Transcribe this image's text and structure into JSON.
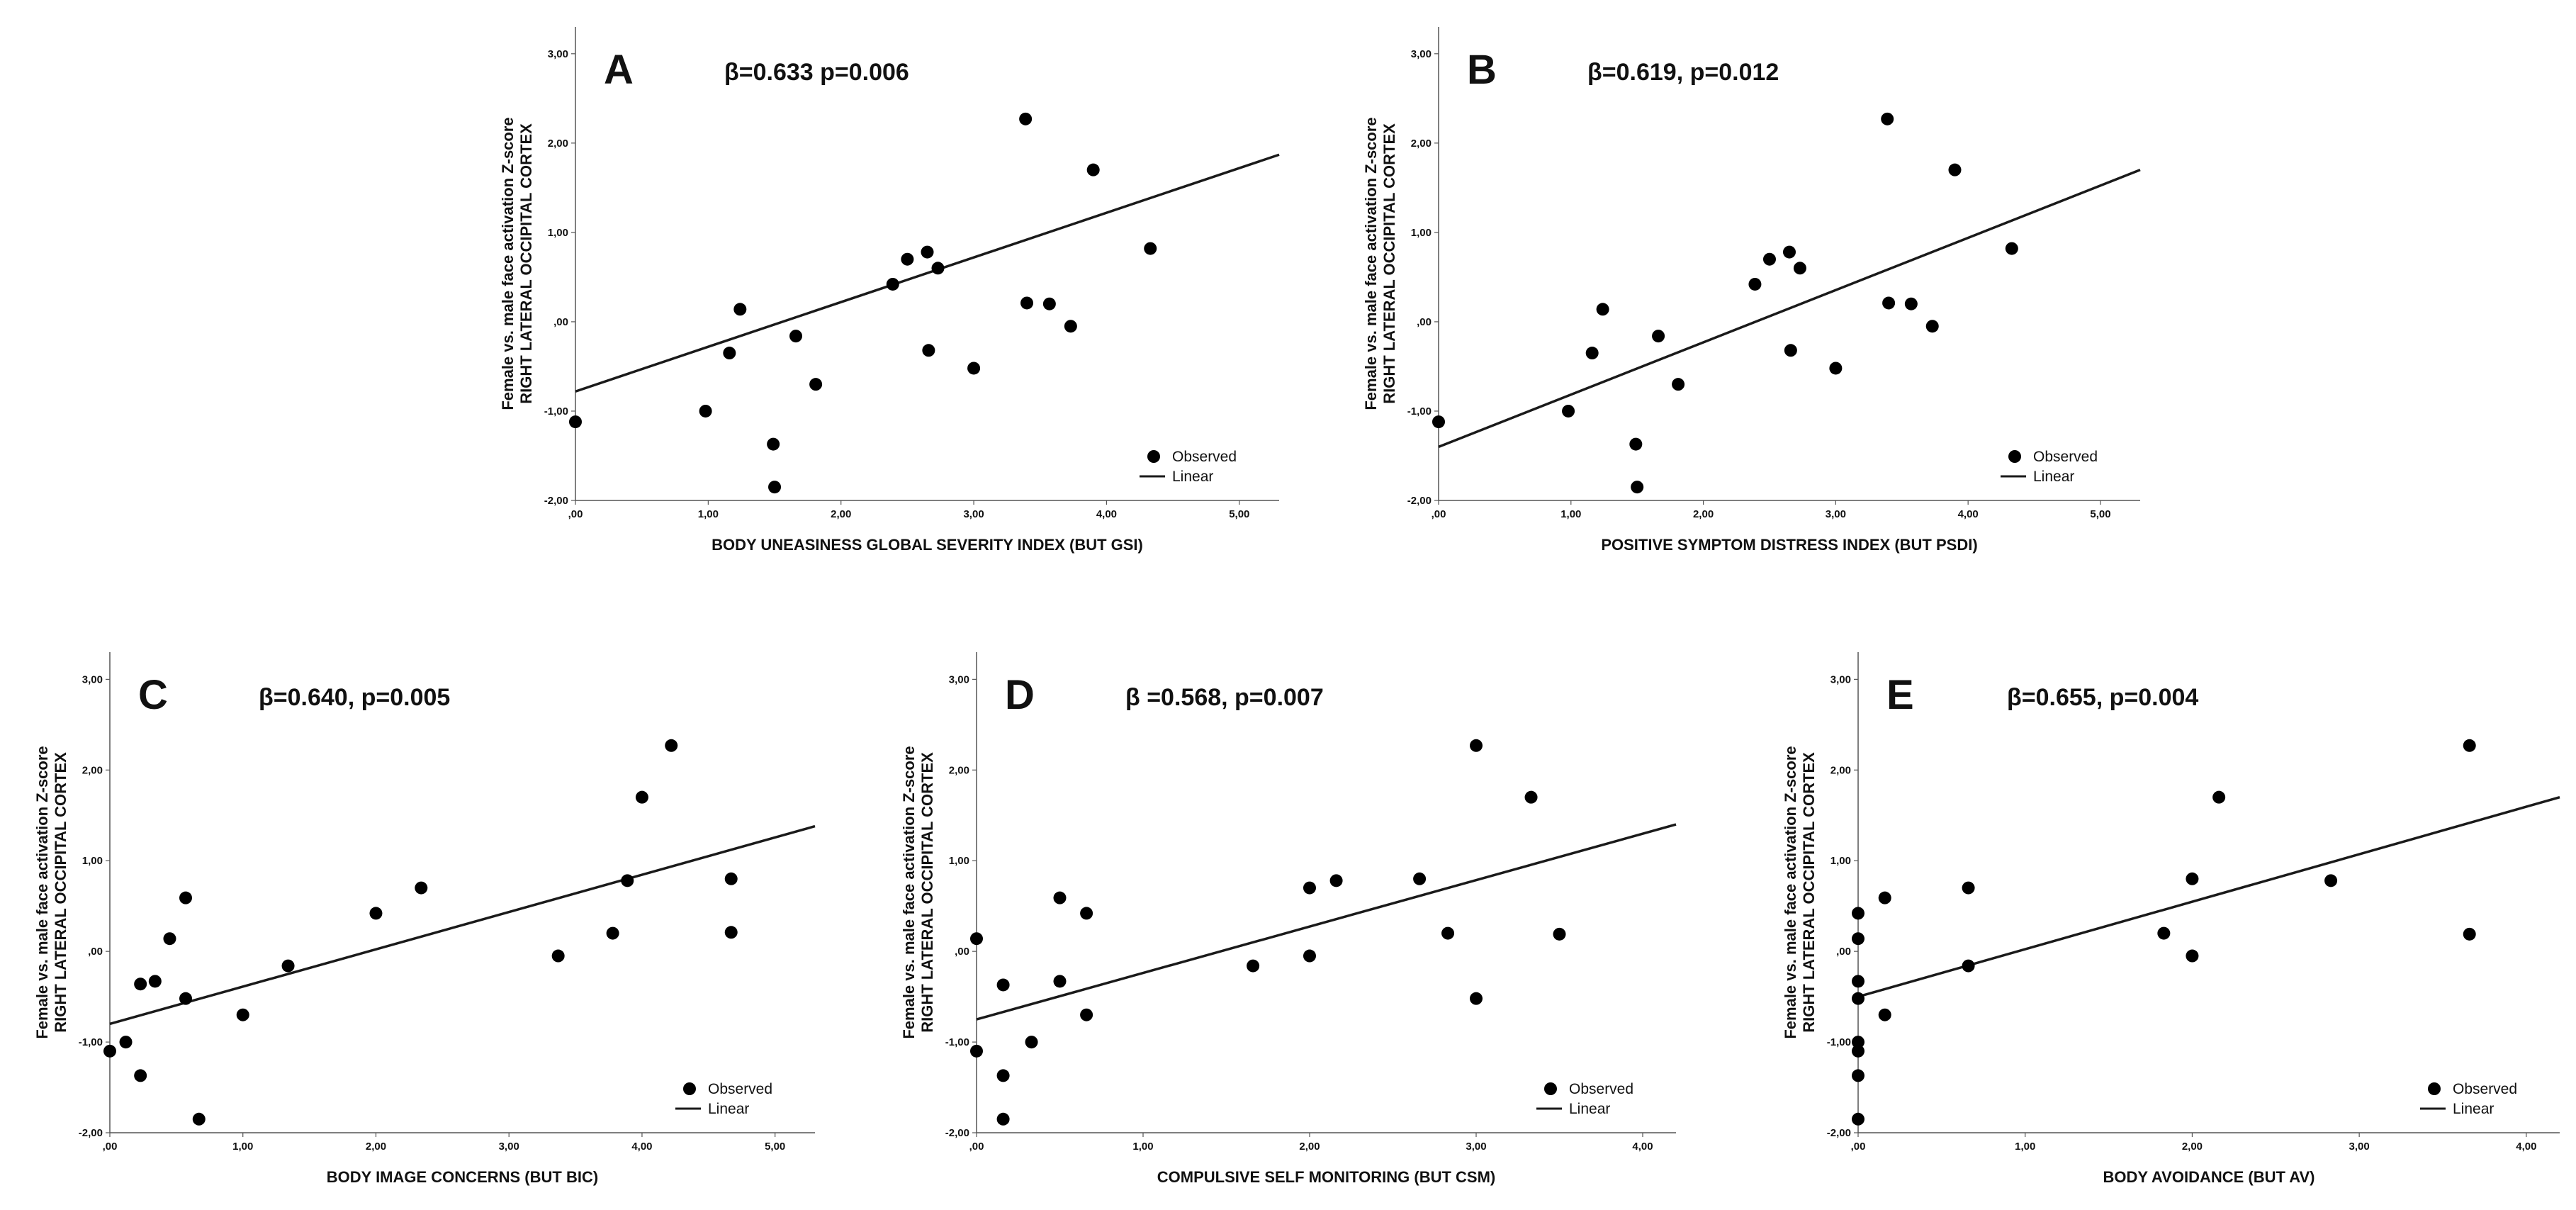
{
  "colors": {
    "points": "#000000",
    "line": "#1a1a1a",
    "axis": "#555555",
    "background": "#ffffff"
  },
  "legend": {
    "observed_label": "Observed",
    "linear_label": "Linear"
  },
  "chart_data": [
    {
      "type": "scatter",
      "panel": "A",
      "title": "β=0.633 p=0.006",
      "xlabel": "BODY UNEASINESS GLOBAL SEVERITY INDEX (BUT GSI)",
      "ylabel_line1": "Female vs. male face activation Z-score",
      "ylabel_line2": "RIGHT LATERAL OCCIPITAL CORTEX",
      "xlim": [
        0,
        5.3
      ],
      "ylim": [
        -2,
        3.3
      ],
      "xticks": [
        ",00",
        "1,00",
        "2,00",
        "3,00",
        "4,00",
        "5,00"
      ],
      "yticks": [
        "-2,00",
        "-1,00",
        ",00",
        "1,00",
        "2,00",
        "3,00"
      ],
      "grid": false,
      "legend_position": "bottom-right",
      "fit_line": {
        "x": [
          0,
          5.3
        ],
        "y": [
          -0.78,
          1.87
        ]
      },
      "points": [
        {
          "x": 0.0,
          "y": -1.12
        },
        {
          "x": 0.98,
          "y": -1.0
        },
        {
          "x": 1.16,
          "y": -0.35
        },
        {
          "x": 1.24,
          "y": 0.14
        },
        {
          "x": 1.49,
          "y": -1.37
        },
        {
          "x": 1.5,
          "y": -1.85
        },
        {
          "x": 1.66,
          "y": -0.16
        },
        {
          "x": 1.81,
          "y": -0.7
        },
        {
          "x": 2.39,
          "y": 0.42
        },
        {
          "x": 2.5,
          "y": 0.7
        },
        {
          "x": 2.65,
          "y": 0.78
        },
        {
          "x": 2.66,
          "y": -0.32
        },
        {
          "x": 2.73,
          "y": 0.6
        },
        {
          "x": 3.0,
          "y": -0.52
        },
        {
          "x": 3.39,
          "y": 2.27
        },
        {
          "x": 3.4,
          "y": 0.21
        },
        {
          "x": 3.57,
          "y": 0.2
        },
        {
          "x": 3.73,
          "y": -0.05
        },
        {
          "x": 3.9,
          "y": 1.7
        },
        {
          "x": 4.33,
          "y": 0.82
        }
      ]
    },
    {
      "type": "scatter",
      "panel": "B",
      "title": "β=0.619, p=0.012",
      "xlabel": "POSITIVE SYMPTOM DISTRESS INDEX (BUT PSDI)",
      "ylabel_line1": "Female vs. male face activation Z-score",
      "ylabel_line2": "RIGHT LATERAL OCCIPITAL CORTEX",
      "xlim": [
        0,
        5.3
      ],
      "ylim": [
        -2,
        3.3
      ],
      "xticks": [
        ",00",
        "1,00",
        "2,00",
        "3,00",
        "4,00",
        "5,00"
      ],
      "yticks": [
        "-2,00",
        "-1,00",
        ",00",
        "1,00",
        "2,00",
        "3,00"
      ],
      "grid": false,
      "legend_position": "bottom-right",
      "fit_line": {
        "x": [
          0,
          5.3
        ],
        "y": [
          -1.4,
          1.7
        ]
      },
      "points": [
        {
          "x": 0.0,
          "y": -1.12
        },
        {
          "x": 0.98,
          "y": -1.0
        },
        {
          "x": 1.16,
          "y": -0.35
        },
        {
          "x": 1.24,
          "y": 0.14
        },
        {
          "x": 1.49,
          "y": -1.37
        },
        {
          "x": 1.5,
          "y": -1.85
        },
        {
          "x": 1.66,
          "y": -0.16
        },
        {
          "x": 1.81,
          "y": -0.7
        },
        {
          "x": 2.39,
          "y": 0.42
        },
        {
          "x": 2.5,
          "y": 0.7
        },
        {
          "x": 2.65,
          "y": 0.78
        },
        {
          "x": 2.66,
          "y": -0.32
        },
        {
          "x": 2.73,
          "y": 0.6
        },
        {
          "x": 3.0,
          "y": -0.52
        },
        {
          "x": 3.39,
          "y": 2.27
        },
        {
          "x": 3.4,
          "y": 0.21
        },
        {
          "x": 3.57,
          "y": 0.2
        },
        {
          "x": 3.73,
          "y": -0.05
        },
        {
          "x": 3.9,
          "y": 1.7
        },
        {
          "x": 4.33,
          "y": 0.82
        }
      ]
    },
    {
      "type": "scatter",
      "panel": "C",
      "title": "β=0.640, p=0.005",
      "xlabel": "BODY IMAGE CONCERNS (BUT BIC)",
      "ylabel_line1": "Female vs. male face activation Z-score",
      "ylabel_line2": "RIGHT LATERAL OCCIPITAL CORTEX",
      "xlim": [
        0,
        5.3
      ],
      "ylim": [
        -2,
        3.3
      ],
      "xticks": [
        ",00",
        "1,00",
        "2,00",
        "3,00",
        "4,00",
        "5,00"
      ],
      "yticks": [
        "-2,00",
        "-1,00",
        ",00",
        "1,00",
        "2,00",
        "3,00"
      ],
      "grid": false,
      "legend_position": "bottom-right",
      "fit_line": {
        "x": [
          0,
          5.3
        ],
        "y": [
          -0.8,
          1.38
        ]
      },
      "points": [
        {
          "x": 0.0,
          "y": -1.1
        },
        {
          "x": 0.12,
          "y": -1.0
        },
        {
          "x": 0.23,
          "y": -1.37
        },
        {
          "x": 0.23,
          "y": -0.36
        },
        {
          "x": 0.34,
          "y": -0.33
        },
        {
          "x": 0.45,
          "y": 0.14
        },
        {
          "x": 0.57,
          "y": -0.52
        },
        {
          "x": 0.57,
          "y": 0.59
        },
        {
          "x": 0.67,
          "y": -1.85
        },
        {
          "x": 1.0,
          "y": -0.7
        },
        {
          "x": 1.34,
          "y": -0.16
        },
        {
          "x": 2.0,
          "y": 0.42
        },
        {
          "x": 2.34,
          "y": 0.7
        },
        {
          "x": 3.37,
          "y": -0.05
        },
        {
          "x": 3.78,
          "y": 0.2
        },
        {
          "x": 3.89,
          "y": 0.78
        },
        {
          "x": 4.0,
          "y": 1.7
        },
        {
          "x": 4.22,
          "y": 2.27
        },
        {
          "x": 4.67,
          "y": 0.21
        },
        {
          "x": 4.67,
          "y": 0.8
        }
      ]
    },
    {
      "type": "scatter",
      "panel": "D",
      "title": "β =0.568, p=0.007",
      "xlabel": "COMPULSIVE SELF MONITORING (BUT CSM)",
      "ylabel_line1": "Female vs. male face activation Z-score",
      "ylabel_line2": "RIGHT LATERAL OCCIPITAL CORTEX",
      "xlim": [
        0,
        4.2
      ],
      "ylim": [
        -2,
        3.3
      ],
      "xticks": [
        ",00",
        "1,00",
        "2,00",
        "3,00",
        "4,00"
      ],
      "yticks": [
        "-2,00",
        "-1,00",
        ",00",
        "1,00",
        "2,00",
        "3,00"
      ],
      "grid": false,
      "legend_position": "bottom-right",
      "fit_line": {
        "x": [
          0,
          4.2
        ],
        "y": [
          -0.75,
          1.4
        ]
      },
      "points": [
        {
          "x": 0.0,
          "y": 0.14
        },
        {
          "x": 0.0,
          "y": -1.1
        },
        {
          "x": 0.16,
          "y": -0.37
        },
        {
          "x": 0.16,
          "y": -1.37
        },
        {
          "x": 0.16,
          "y": -1.85
        },
        {
          "x": 0.33,
          "y": -1.0
        },
        {
          "x": 0.5,
          "y": 0.59
        },
        {
          "x": 0.5,
          "y": -0.33
        },
        {
          "x": 0.66,
          "y": 0.42
        },
        {
          "x": 0.66,
          "y": -0.7
        },
        {
          "x": 1.66,
          "y": -0.16
        },
        {
          "x": 2.0,
          "y": 0.7
        },
        {
          "x": 2.0,
          "y": -0.05
        },
        {
          "x": 2.16,
          "y": 0.78
        },
        {
          "x": 2.66,
          "y": 0.8
        },
        {
          "x": 2.83,
          "y": 0.2
        },
        {
          "x": 3.0,
          "y": 2.27
        },
        {
          "x": 3.0,
          "y": -0.52
        },
        {
          "x": 3.33,
          "y": 1.7
        },
        {
          "x": 3.5,
          "y": 0.19
        }
      ]
    },
    {
      "type": "scatter",
      "panel": "E",
      "title": "β=0.655, p=0.004",
      "xlabel": "BODY AVOIDANCE (BUT AV)",
      "ylabel_line1": "Female vs. male face activation Z-score",
      "ylabel_line2": "RIGHT LATERAL OCCIPITAL CORTEX",
      "xlim": [
        0,
        4.2
      ],
      "ylim": [
        -2,
        3.3
      ],
      "xticks": [
        ",00",
        "1,00",
        "2,00",
        "3,00",
        "4,00"
      ],
      "yticks": [
        "-2,00",
        "-1,00",
        ",00",
        "1,00",
        "2,00",
        "3,00"
      ],
      "grid": false,
      "legend_position": "bottom-right",
      "fit_line": {
        "x": [
          0,
          4.2
        ],
        "y": [
          -0.5,
          1.7
        ]
      },
      "points": [
        {
          "x": 0.0,
          "y": 0.42
        },
        {
          "x": 0.0,
          "y": 0.14
        },
        {
          "x": 0.0,
          "y": -0.33
        },
        {
          "x": 0.0,
          "y": -0.52
        },
        {
          "x": 0.0,
          "y": -1.0
        },
        {
          "x": 0.0,
          "y": -1.1
        },
        {
          "x": 0.0,
          "y": -1.37
        },
        {
          "x": 0.0,
          "y": -1.85
        },
        {
          "x": 0.16,
          "y": 0.59
        },
        {
          "x": 0.16,
          "y": -0.7
        },
        {
          "x": 0.66,
          "y": 0.7
        },
        {
          "x": 0.66,
          "y": -0.16
        },
        {
          "x": 1.83,
          "y": 0.2
        },
        {
          "x": 2.0,
          "y": 0.8
        },
        {
          "x": 2.0,
          "y": -0.05
        },
        {
          "x": 2.16,
          "y": 1.7
        },
        {
          "x": 2.83,
          "y": 0.78
        },
        {
          "x": 3.66,
          "y": 2.27
        },
        {
          "x": 3.66,
          "y": 0.19
        }
      ]
    }
  ]
}
